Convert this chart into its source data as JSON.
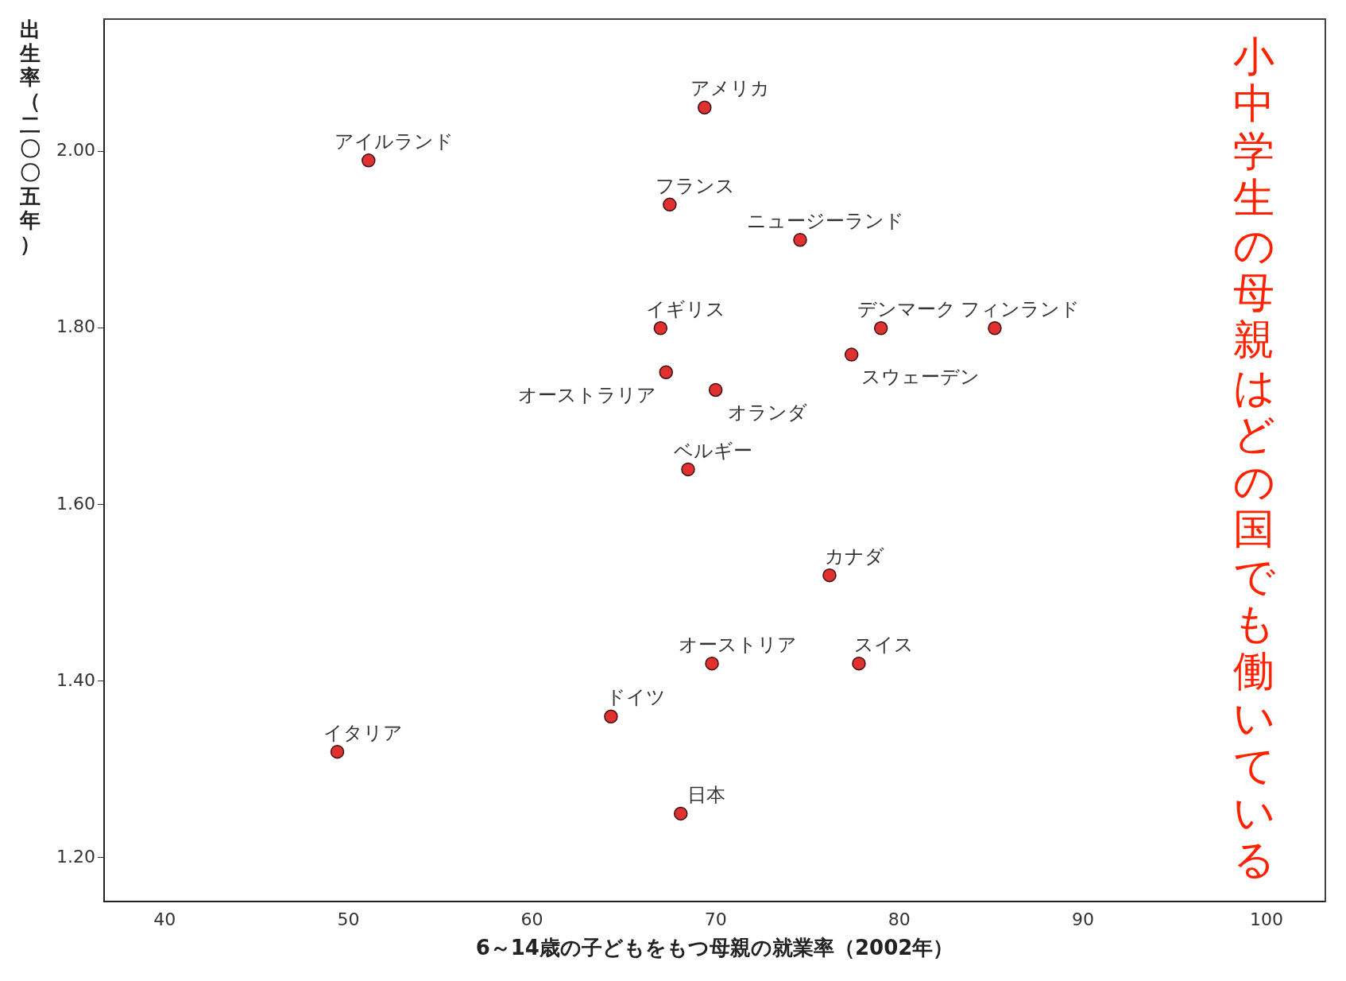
{
  "chart_data": {
    "type": "scatter",
    "xlabel": "6～14歳の子どもをもつ母親の就業率（2002年）",
    "ylabel": "出生率（二〇〇五年）",
    "xlim": [
      36.7,
      103.2
    ],
    "xticks": [
      40,
      50,
      60,
      70,
      80,
      90,
      100
    ],
    "ylim": [
      1.15,
      2.15
    ],
    "yticks": [
      {
        "value": 1.2,
        "label": "1.20"
      },
      {
        "value": 1.4,
        "label": "1.40"
      },
      {
        "value": 1.6,
        "label": "1.60"
      },
      {
        "value": 1.8,
        "label": "1.80"
      },
      {
        "value": 2.0,
        "label": "2.00"
      }
    ],
    "grid": false,
    "legend": false,
    "marker": "circle",
    "series": [
      {
        "color": "#e03030",
        "x": [
          69.4,
          51.1,
          67.5,
          74.6,
          67.0,
          79.0,
          85.2,
          77.4,
          67.3,
          70.0,
          68.5,
          76.2,
          69.8,
          77.8,
          64.3,
          49.4,
          68.1
        ],
        "values": [
          2.05,
          1.99,
          1.94,
          1.9,
          1.8,
          1.8,
          1.8,
          1.77,
          1.75,
          1.73,
          1.64,
          1.52,
          1.42,
          1.42,
          1.36,
          1.32,
          1.25
        ]
      }
    ],
    "annotations": [
      {
        "text": "アメリカ",
        "x": 69.4,
        "y": 2.05
      },
      {
        "text": "アイルランド",
        "x": 51.1,
        "y": 1.99
      },
      {
        "text": "フランス",
        "x": 67.5,
        "y": 1.94
      },
      {
        "text": "ニュージーランド",
        "x": 74.6,
        "y": 1.9
      },
      {
        "text": "イギリス",
        "x": 67.0,
        "y": 1.8
      },
      {
        "text": "デンマーク",
        "x": 79.0,
        "y": 1.8
      },
      {
        "text": "フィンランド",
        "x": 85.2,
        "y": 1.8
      },
      {
        "text": "スウェーデン",
        "x": 77.4,
        "y": 1.77
      },
      {
        "text": "オーストラリア",
        "x": 67.3,
        "y": 1.75
      },
      {
        "text": "オランダ",
        "x": 70.0,
        "y": 1.73
      },
      {
        "text": "ベルギー",
        "x": 68.5,
        "y": 1.64
      },
      {
        "text": "カナダ",
        "x": 76.2,
        "y": 1.52
      },
      {
        "text": "オーストリア",
        "x": 69.8,
        "y": 1.42
      },
      {
        "text": "スイス",
        "x": 77.8,
        "y": 1.42
      },
      {
        "text": "ドイツ",
        "x": 64.3,
        "y": 1.36
      },
      {
        "text": "イタリア",
        "x": 49.4,
        "y": 1.32
      },
      {
        "text": "日本",
        "x": 68.1,
        "y": 1.25
      },
      "小中学生の母親はどの国でも働いている"
    ]
  }
}
